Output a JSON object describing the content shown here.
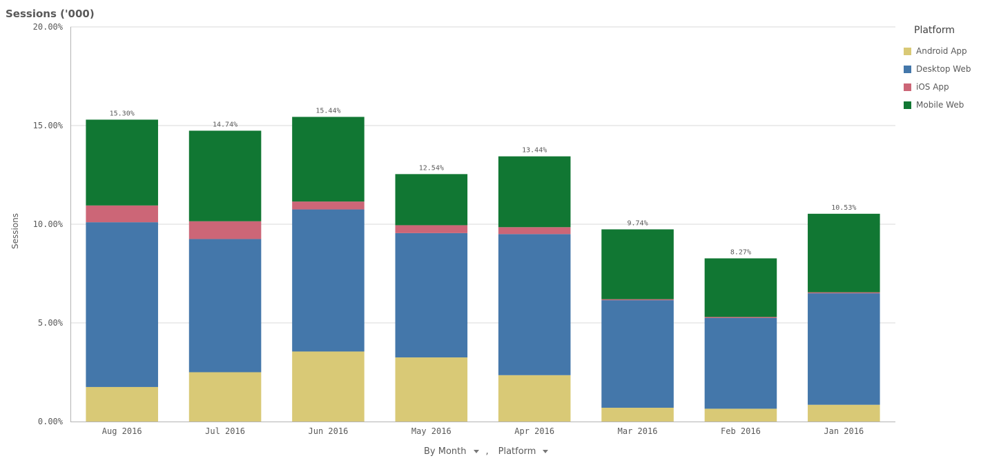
{
  "title": "Sessions ('000)",
  "chart_data": {
    "type": "bar",
    "stacked": true,
    "title": "Sessions ('000)",
    "xlabel": "",
    "ylabel": "Sessions",
    "ylim": [
      0,
      20
    ],
    "yticks": [
      0,
      5,
      10,
      15,
      20
    ],
    "ytick_labels": [
      "0.00%",
      "5.00%",
      "10.00%",
      "15.00%",
      "20.00%"
    ],
    "categories": [
      "Aug 2016",
      "Jul 2016",
      "Jun 2016",
      "May 2016",
      "Apr 2016",
      "Mar 2016",
      "Feb 2016",
      "Jan 2016"
    ],
    "totals": [
      "15.30%",
      "14.74%",
      "15.44%",
      "12.54%",
      "13.44%",
      "9.74%",
      "8.27%",
      "10.53%"
    ],
    "series": [
      {
        "name": "Android App",
        "color": "#d9c976",
        "values": [
          1.75,
          2.5,
          3.55,
          3.25,
          2.35,
          0.7,
          0.65,
          0.85
        ]
      },
      {
        "name": "Desktop Web",
        "color": "#4477aa",
        "values": [
          8.35,
          6.75,
          7.2,
          6.3,
          7.15,
          5.45,
          4.6,
          5.65
        ]
      },
      {
        "name": "iOS App",
        "color": "#cc6677",
        "values": [
          0.85,
          0.9,
          0.4,
          0.4,
          0.35,
          0.05,
          0.05,
          0.05
        ]
      },
      {
        "name": "Mobile Web",
        "color": "#117733",
        "values": [
          4.35,
          4.59,
          4.29,
          2.59,
          3.59,
          3.54,
          2.97,
          3.98
        ]
      }
    ],
    "legend_title": "Platform",
    "legend_position": "right"
  },
  "dimensions": {
    "first": "By Month",
    "separator": ",",
    "second": "Platform"
  }
}
